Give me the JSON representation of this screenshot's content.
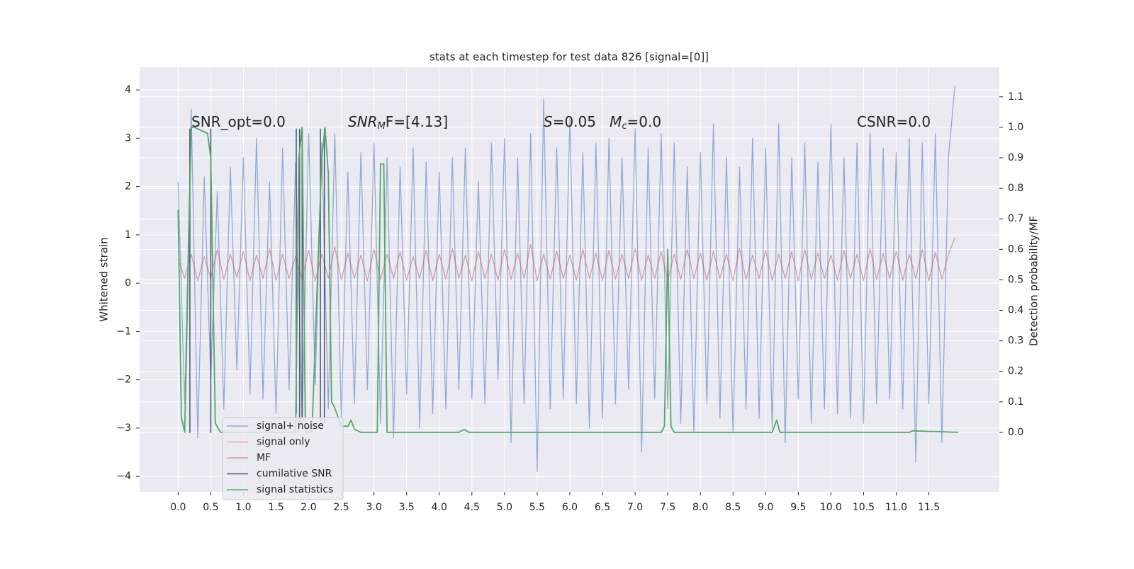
{
  "chart_data": {
    "type": "line",
    "title": "stats at each timestep for test data 826 [signal=[0]]",
    "ylabel": "Whitened strain",
    "y2label": "Detection probability/MF",
    "annotations": [
      [
        {
          "text": "SNR_opt=0.0"
        }
      ],
      [
        {
          "text": "SNR",
          "style": "italic"
        },
        {
          "text": "M",
          "style": "sub"
        },
        {
          "text": "F=[4.13]"
        }
      ],
      [
        {
          "text": "S",
          "style": "italic"
        },
        {
          "text": "=0.05   "
        },
        {
          "text": "M",
          "style": "italic"
        },
        {
          "text": "c",
          "style": "sub"
        },
        {
          "text": "=0.0"
        }
      ],
      [
        {
          "text": "CSNR=0.0"
        }
      ]
    ],
    "xlim": [
      -0.59,
      12.58
    ],
    "ylim": [
      -4.32,
      4.47
    ],
    "y2lim": [
      -0.195,
      1.197
    ],
    "grid": true,
    "legend": "lower left",
    "xticks": [
      {
        "value": 0,
        "label": "0.0"
      },
      0.5,
      {
        "value": 1,
        "label": "1.0"
      },
      1.5,
      {
        "value": 2,
        "label": "2.0"
      },
      2.5,
      {
        "value": 3,
        "label": "3.0"
      },
      3.5,
      {
        "value": 4,
        "label": "4.0"
      },
      4.5,
      {
        "value": 5,
        "label": "5.0"
      },
      5.5,
      {
        "value": 6,
        "label": "6.0"
      },
      6.5,
      {
        "value": 7,
        "label": "7.0"
      },
      7.5,
      {
        "value": 8,
        "label": "8.0"
      },
      8.5,
      {
        "value": 9,
        "label": "9.0"
      },
      9.5,
      {
        "value": 10,
        "label": "10.0"
      },
      10.5,
      {
        "value": 11,
        "label": "11.0"
      },
      11.5
    ],
    "yticks": [
      {
        "value": -4,
        "label": "−4"
      },
      {
        "value": -3,
        "label": "−3"
      },
      {
        "value": -2,
        "label": "−2"
      },
      {
        "value": -1,
        "label": "−1"
      },
      0,
      1,
      2,
      3,
      4
    ],
    "y2ticks": [
      {
        "value": 0,
        "label": "0.0"
      },
      0.1,
      0.2,
      0.3,
      0.4,
      0.5,
      0.6,
      0.7,
      0.8,
      0.9,
      {
        "value": 1,
        "label": "1.0"
      },
      1.1
    ],
    "x": [
      0,
      0.1,
      0.2,
      0.3,
      0.4,
      0.5,
      0.6,
      0.7,
      0.8,
      0.9,
      1,
      1.1,
      1.2,
      1.3,
      1.4,
      1.5,
      1.6,
      1.7,
      1.8,
      1.9,
      2,
      2.1,
      2.2,
      2.3,
      2.4,
      2.5,
      2.6,
      2.7,
      2.8,
      2.9,
      3,
      3.1,
      3.2,
      3.3,
      3.4,
      3.5,
      3.6,
      3.7,
      3.8,
      3.9,
      4,
      4.1,
      4.2,
      4.3,
      4.4,
      4.5,
      4.6,
      4.7,
      4.8,
      4.9,
      5,
      5.1,
      5.2,
      5.3,
      5.4,
      5.5,
      5.6,
      5.7,
      5.8,
      5.9,
      6,
      6.1,
      6.2,
      6.3,
      6.4,
      6.5,
      6.6,
      6.7,
      6.8,
      6.9,
      7,
      7.1,
      7.2,
      7.3,
      7.4,
      7.5,
      7.6,
      7.7,
      7.8,
      7.9,
      8,
      8.1,
      8.2,
      8.3,
      8.4,
      8.5,
      8.6,
      8.7,
      8.8,
      8.9,
      9,
      9.1,
      9.2,
      9.3,
      9.4,
      9.5,
      9.6,
      9.7,
      9.8,
      9.9,
      10,
      10.1,
      10.2,
      10.3,
      10.4,
      10.5,
      10.6,
      10.7,
      10.8,
      10.9,
      11,
      11.1,
      11.2,
      11.3,
      11.4,
      11.5,
      11.6,
      11.7,
      11.8,
      11.9
    ],
    "series": [
      {
        "name": "signal+ noise",
        "color": "#4c72b0",
        "axis": "y",
        "values": [
          2.1,
          -2.5,
          3.6,
          -3.2,
          2.2,
          -2.0,
          1.9,
          -2.6,
          2.4,
          -1.8,
          2.6,
          -2.3,
          3.0,
          -2.4,
          2.1,
          -2.7,
          2.8,
          -2.2,
          2.5,
          -2.9,
          3.1,
          -2.1,
          2.9,
          -2.6,
          3.1,
          -2.8,
          2.3,
          -2.5,
          2.7,
          -2.2,
          2.9,
          -2.9,
          2.6,
          -3.2,
          2.4,
          -2.3,
          2.8,
          -3.0,
          2.5,
          -2.7,
          2.3,
          -2.6,
          2.6,
          -2.2,
          2.8,
          -2.4,
          2.1,
          -2.5,
          2.9,
          -2.0,
          3.0,
          -3.3,
          2.6,
          -2.5,
          3.1,
          -3.9,
          3.8,
          -2.6,
          2.8,
          -2.4,
          3.4,
          -2.5,
          2.7,
          -3.0,
          2.9,
          -2.8,
          3.0,
          -2.5,
          2.6,
          -2.2,
          3.2,
          -3.5,
          2.8,
          -2.4,
          3.1,
          -2.6,
          2.9,
          -2.9,
          2.4,
          -3.1,
          2.7,
          -2.5,
          3.3,
          -2.8,
          2.6,
          -3.1,
          2.4,
          -2.6,
          3.0,
          -2.8,
          2.8,
          -3.0,
          3.3,
          -3.3,
          2.6,
          -2.4,
          2.9,
          -2.9,
          2.5,
          -2.6,
          3.3,
          -2.7,
          2.6,
          -2.8,
          2.9,
          -2.9,
          3.1,
          -2.5,
          2.8,
          -2.4,
          2.7,
          -2.6,
          3.0,
          -3.7,
          2.9,
          -2.5,
          3.1,
          -3.3,
          2.6,
          4.1
        ]
      },
      {
        "name": "signal only",
        "color": "#dd8452",
        "axis": "y"
      },
      {
        "name": "MF",
        "color": "#c44e52",
        "axis": "y",
        "values": [
          0.5,
          0.1,
          0.6,
          0.05,
          0.55,
          0.1,
          0.7,
          0.08,
          0.6,
          0.12,
          0.65,
          0.05,
          0.58,
          0.1,
          0.72,
          0.06,
          0.6,
          0.1,
          0.55,
          0.08,
          0.68,
          0.05,
          0.6,
          0.1,
          0.75,
          0.07,
          0.62,
          0.1,
          0.58,
          0.05,
          0.7,
          0.08,
          0.6,
          0.1,
          0.65,
          0.06,
          0.55,
          0.1,
          0.68,
          0.05,
          0.6,
          0.08,
          0.72,
          0.1,
          0.58,
          0.05,
          0.65,
          0.1,
          0.6,
          0.06,
          0.7,
          0.08,
          0.62,
          0.1,
          0.8,
          0.05,
          0.6,
          0.08,
          0.66,
          0.1,
          0.58,
          0.06,
          0.7,
          0.1,
          0.62,
          0.05,
          0.68,
          0.08,
          0.6,
          0.1,
          0.72,
          0.06,
          0.58,
          0.1,
          0.65,
          0.05,
          0.6,
          0.08,
          0.7,
          0.1,
          0.62,
          0.06,
          0.66,
          0.1,
          0.6,
          0.05,
          0.72,
          0.08,
          0.58,
          0.1,
          0.68,
          0.06,
          0.6,
          0.1,
          0.65,
          0.05,
          0.7,
          0.08,
          0.62,
          0.1,
          0.58,
          0.06,
          0.68,
          0.1,
          0.6,
          0.05,
          0.72,
          0.08,
          0.62,
          0.1,
          0.66,
          0.06,
          0.6,
          0.1,
          0.7,
          0.05,
          0.64,
          0.08,
          0.6,
          0.95
        ]
      },
      {
        "name": "cumilative SNR",
        "color": "#3f4f6a",
        "axis": "y",
        "x": [
          0.18,
          0.18,
          0.18,
          0.5,
          0.5,
          0.5,
          1.81,
          1.81,
          1.81,
          1.86,
          1.86,
          1.86,
          1.9,
          1.9,
          1.9,
          2.18,
          2.18,
          2.18,
          2.24,
          2.24
        ],
        "values": [
          -3.1,
          3.2,
          null,
          -3.1,
          3.2,
          null,
          -2.7,
          3.2,
          null,
          -3.0,
          3.2,
          null,
          -2.8,
          3.2,
          null,
          -2.9,
          3.2,
          null,
          -2.9,
          3.2
        ]
      },
      {
        "name": "signal statistics",
        "color": "#55a868",
        "axis": "y2",
        "x": [
          0,
          0.05,
          0.1,
          0.2,
          0.25,
          0.45,
          0.5,
          0.57,
          0.65,
          1.8,
          1.85,
          1.9,
          1.95,
          2.05,
          2.2,
          2.25,
          2.3,
          2.35,
          2.4,
          2.5,
          2.6,
          2.65,
          2.7,
          2.8,
          3.05,
          3.1,
          3.15,
          3.2,
          4.3,
          4.38,
          4.45,
          7.4,
          7.45,
          7.5,
          7.55,
          7.6,
          9.1,
          9.17,
          9.22,
          11.2,
          11.25,
          11.95
        ],
        "values": [
          0.73,
          0.05,
          0.0,
          1.0,
          1.0,
          0.98,
          0.9,
          0.03,
          0.0,
          0.0,
          0.9,
          1.0,
          0.0,
          0.0,
          0.9,
          1.0,
          0.85,
          0.1,
          0.08,
          0.02,
          0.02,
          0.04,
          0.01,
          0.0,
          0.0,
          0.88,
          0.88,
          0.0,
          0.0,
          0.01,
          0.0,
          0.0,
          0.02,
          0.6,
          0.02,
          0.0,
          0.0,
          0.04,
          0.0,
          0.0,
          0.005,
          0.0
        ]
      }
    ]
  }
}
